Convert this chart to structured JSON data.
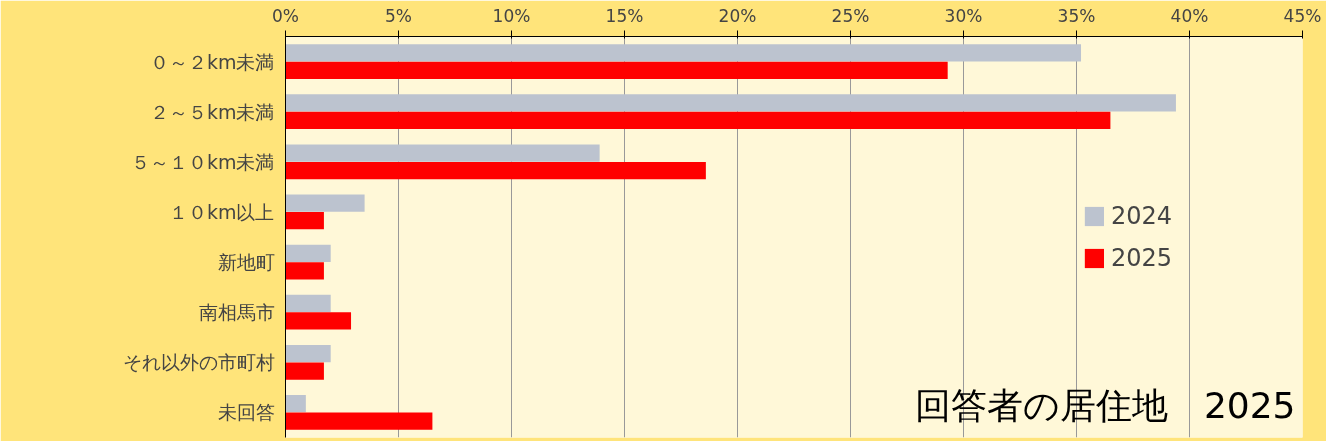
{
  "chart_data": {
    "type": "bar",
    "orientation": "horizontal",
    "title": "回答者の居住地　2025",
    "categories": [
      "０～２km未満",
      "２～５km未満",
      "５～１０km未満",
      "１０km以上",
      "新地町",
      "南相馬市",
      "それ以外の市町村",
      "未回答"
    ],
    "series": [
      {
        "name": "2024",
        "color": "#bcc3cf",
        "values": [
          35.2,
          39.4,
          13.9,
          3.5,
          2.0,
          2.0,
          2.0,
          0.9
        ]
      },
      {
        "name": "2025",
        "color": "#ff0000",
        "values": [
          29.3,
          36.5,
          18.6,
          1.7,
          1.7,
          2.9,
          1.7,
          6.5
        ]
      }
    ],
    "xlim": [
      0,
      45
    ],
    "xticks": [
      {
        "value": 0,
        "label": "0%"
      },
      {
        "value": 5,
        "label": "5%"
      },
      {
        "value": 10,
        "label": "10%"
      },
      {
        "value": 15,
        "label": "15%"
      },
      {
        "value": 20,
        "label": "20%"
      },
      {
        "value": 25,
        "label": "25%"
      },
      {
        "value": 30,
        "label": "30%"
      },
      {
        "value": 35,
        "label": "35%"
      },
      {
        "value": 40,
        "label": "40%"
      },
      {
        "value": 45,
        "label": "45%"
      }
    ],
    "grid": "x",
    "legend": "right"
  }
}
